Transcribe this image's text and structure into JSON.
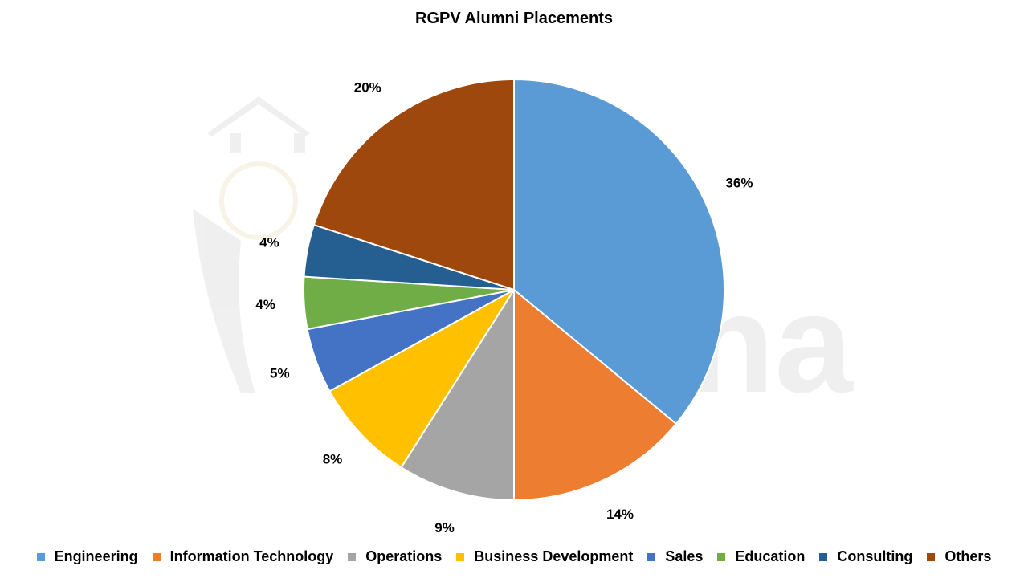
{
  "chart_data": {
    "type": "pie",
    "title": "RGPV Alumni Placements",
    "categories": [
      "Engineering",
      "Information Technology",
      "Operations",
      "Business Development",
      "Sales",
      "Education",
      "Consulting",
      "Others"
    ],
    "values": [
      36,
      14,
      9,
      8,
      5,
      4,
      4,
      20
    ],
    "labels": [
      "36%",
      "14%",
      "9%",
      "8%",
      "5%",
      "4%",
      "4%",
      "20%"
    ],
    "colors": [
      "#5B9BD5",
      "#ED7D31",
      "#A5A5A5",
      "#FFC000",
      "#4472C4",
      "#70AD47",
      "#255E91",
      "#9E480E"
    ],
    "legend_position": "bottom",
    "start_angle": "12 o'clock, clockwise"
  },
  "watermark": {
    "text": "shiksha"
  }
}
